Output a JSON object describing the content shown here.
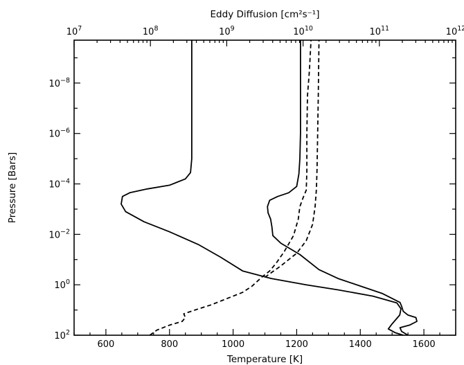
{
  "chart_data": {
    "type": "line",
    "xlabel": "Temperature [K]",
    "x2label": "Eddy Diffusion [cm²s⁻¹]",
    "ylabel": "Pressure [Bars]",
    "x_axis": {
      "min": 500,
      "max": 1700,
      "ticks": [
        "600",
        "800",
        "1000",
        "1200",
        "1400",
        "1600"
      ]
    },
    "x2_axis": {
      "scale": "log",
      "min_exp": 7,
      "max_exp": 12,
      "ticks": [
        {
          "base": "10",
          "exp": "7"
        },
        {
          "base": "10",
          "exp": "8"
        },
        {
          "base": "10",
          "exp": "9"
        },
        {
          "base": "10",
          "exp": "10"
        },
        {
          "base": "10",
          "exp": "11"
        },
        {
          "base": "10",
          "exp": "12"
        }
      ]
    },
    "y_axis": {
      "scale": "log",
      "inverted": true,
      "top_exp": -9.7,
      "bottom_exp": 2,
      "ticks": [
        {
          "base": "10",
          "exp": "−8",
          "value": -8
        },
        {
          "base": "10",
          "exp": "−6",
          "value": -6
        },
        {
          "base": "10",
          "exp": "−4",
          "value": -4
        },
        {
          "base": "10",
          "exp": "−2",
          "value": -2
        },
        {
          "base": "10",
          "exp": "0",
          "value": 0
        },
        {
          "base": "10",
          "exp": "2",
          "value": 2
        }
      ]
    },
    "series": [
      {
        "style": "solid",
        "points": [
          [
            870,
            -9.7
          ],
          [
            870,
            -5.0
          ],
          [
            866,
            -4.45
          ],
          [
            850,
            -4.2
          ],
          [
            800,
            -3.95
          ],
          [
            730,
            -3.8
          ],
          [
            675,
            -3.65
          ],
          [
            652,
            -3.5
          ],
          [
            648,
            -3.2
          ],
          [
            662,
            -2.9
          ],
          [
            720,
            -2.5
          ],
          [
            800,
            -2.1
          ],
          [
            890,
            -1.6
          ],
          [
            960,
            -1.1
          ],
          [
            1030,
            -0.55
          ],
          [
            1120,
            -0.25
          ],
          [
            1230,
            0.0
          ],
          [
            1330,
            0.2
          ],
          [
            1440,
            0.45
          ],
          [
            1515,
            0.72
          ],
          [
            1528,
            0.95
          ],
          [
            1524,
            1.2
          ],
          [
            1500,
            1.55
          ],
          [
            1488,
            1.75
          ],
          [
            1510,
            1.9
          ],
          [
            1535,
            2.0
          ]
        ]
      },
      {
        "style": "solid",
        "points": [
          [
            1550,
            2.0
          ],
          [
            1530,
            1.85
          ],
          [
            1525,
            1.7
          ],
          [
            1555,
            1.6
          ],
          [
            1578,
            1.45
          ],
          [
            1575,
            1.3
          ],
          [
            1550,
            1.2
          ],
          [
            1535,
            1.05
          ],
          [
            1530,
            0.85
          ],
          [
            1525,
            0.7
          ],
          [
            1470,
            0.35
          ],
          [
            1400,
            0.05
          ],
          [
            1330,
            -0.25
          ],
          [
            1270,
            -0.6
          ],
          [
            1210,
            -1.2
          ],
          [
            1150,
            -1.65
          ],
          [
            1125,
            -1.95
          ],
          [
            1122,
            -2.3
          ],
          [
            1118,
            -2.6
          ],
          [
            1110,
            -2.85
          ],
          [
            1108,
            -3.1
          ],
          [
            1115,
            -3.35
          ],
          [
            1140,
            -3.5
          ],
          [
            1175,
            -3.65
          ],
          [
            1200,
            -3.9
          ],
          [
            1207,
            -4.4
          ],
          [
            1210,
            -5.0
          ],
          [
            1212,
            -6.0
          ],
          [
            1212,
            -9.7
          ]
        ]
      },
      {
        "style": "dashed",
        "points": [
          [
            738,
            2.0
          ],
          [
            760,
            1.8
          ],
          [
            800,
            1.6
          ],
          [
            840,
            1.45
          ],
          [
            850,
            1.3
          ],
          [
            845,
            1.15
          ],
          [
            880,
            1.0
          ],
          [
            930,
            0.8
          ],
          [
            980,
            0.55
          ],
          [
            1030,
            0.3
          ],
          [
            1060,
            0.05
          ],
          [
            1090,
            -0.3
          ],
          [
            1115,
            -0.55
          ],
          [
            1135,
            -0.85
          ],
          [
            1160,
            -1.3
          ],
          [
            1190,
            -1.95
          ],
          [
            1205,
            -2.6
          ],
          [
            1210,
            -3.1
          ],
          [
            1220,
            -3.45
          ],
          [
            1230,
            -3.75
          ],
          [
            1232,
            -4.5
          ],
          [
            1232,
            -6.0
          ],
          [
            1234,
            -7.5
          ],
          [
            1240,
            -8.5
          ],
          [
            1245,
            -9.7
          ]
        ]
      },
      {
        "style": "dashed",
        "points": [
          [
            1100,
            -0.3
          ],
          [
            1150,
            -0.75
          ],
          [
            1200,
            -1.25
          ],
          [
            1230,
            -1.75
          ],
          [
            1250,
            -2.4
          ],
          [
            1258,
            -3.1
          ],
          [
            1262,
            -3.8
          ],
          [
            1264,
            -4.6
          ],
          [
            1266,
            -6.0
          ],
          [
            1268,
            -7.5
          ],
          [
            1270,
            -9.7
          ]
        ]
      }
    ]
  }
}
